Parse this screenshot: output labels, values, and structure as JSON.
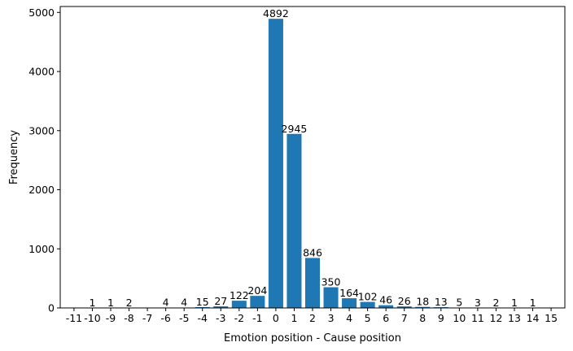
{
  "chart_data": {
    "type": "bar",
    "categories": [
      "-11",
      "-10",
      "-9",
      "-8",
      "-7",
      "-6",
      "-5",
      "-4",
      "-3",
      "-2",
      "-1",
      "0",
      "1",
      "2",
      "3",
      "4",
      "5",
      "6",
      "7",
      "8",
      "9",
      "10",
      "11",
      "12",
      "13",
      "14",
      "15"
    ],
    "values": [
      0,
      1,
      1,
      2,
      0,
      4,
      4,
      15,
      27,
      122,
      204,
      4892,
      2945,
      846,
      350,
      164,
      102,
      46,
      26,
      18,
      13,
      5,
      3,
      2,
      1,
      1,
      0
    ],
    "value_labels": [
      "",
      "1",
      "1",
      "2",
      "",
      "4",
      "4",
      "15",
      "27",
      "122",
      "204",
      "4892",
      "2945",
      "846",
      "350",
      "164",
      "102",
      "46",
      "26",
      "18",
      "13",
      "5",
      "3",
      "2",
      "1",
      "1",
      ""
    ],
    "xlabel": "Emotion position - Cause position",
    "ylabel": "Frequency",
    "ylim": [
      0,
      5100
    ],
    "yticks": [
      0,
      1000,
      2000,
      3000,
      4000,
      5000
    ],
    "bar_color": "#1f77b4",
    "grid": false
  }
}
